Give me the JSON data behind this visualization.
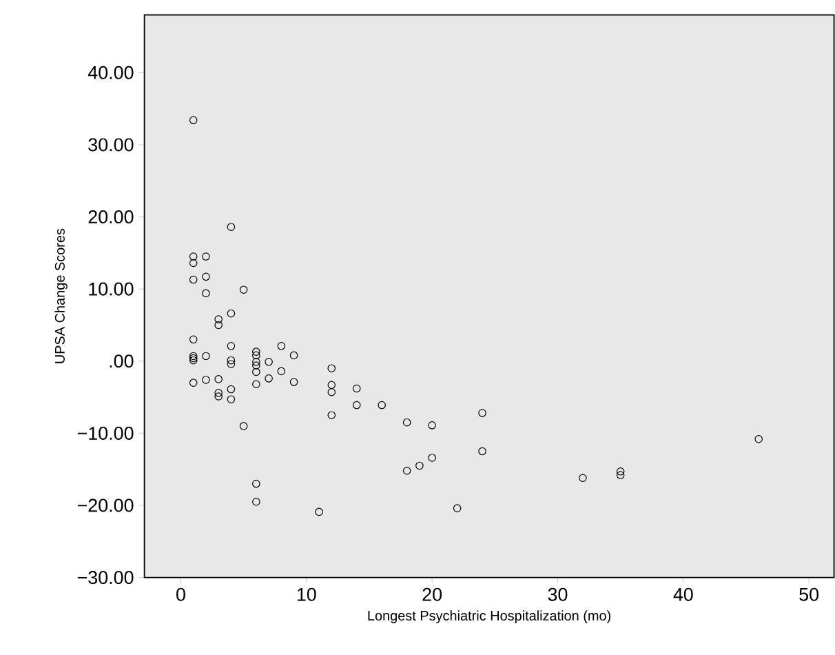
{
  "chart_data": {
    "type": "scatter",
    "xlabel": "Longest Psychiatric Hospitalization (mo)",
    "ylabel": "UPSA Change Scores",
    "xlim": [
      -2.9,
      52
    ],
    "ylim": [
      -30,
      48
    ],
    "xticks": [
      0,
      10,
      20,
      30,
      40,
      50
    ],
    "yticks": [
      {
        "value": -30,
        "label": "−30.00"
      },
      {
        "value": -20,
        "label": "−20.00"
      },
      {
        "value": -10,
        "label": "−10.00"
      },
      {
        "value": 0,
        "label": ".00"
      },
      {
        "value": 10,
        "label": "10.00"
      },
      {
        "value": 20,
        "label": "20.00"
      },
      {
        "value": 30,
        "label": "30.00"
      },
      {
        "value": 40,
        "label": "40.00"
      }
    ],
    "marker": "circle",
    "series": [
      {
        "color": "#000000",
        "x": [
          1,
          1,
          1,
          1,
          1,
          1,
          1,
          1,
          1,
          2,
          2,
          2,
          2,
          2,
          3,
          3,
          3,
          3,
          3,
          4,
          4,
          4,
          4,
          4,
          4,
          4,
          5,
          5,
          6,
          6,
          6,
          6,
          6,
          6,
          6,
          6,
          7,
          7,
          8,
          8,
          9,
          9,
          11,
          12,
          12,
          12,
          12,
          14,
          14,
          16,
          18,
          18,
          19,
          20,
          20,
          22,
          24,
          24,
          32,
          35,
          35,
          46
        ],
        "values": [
          33.4,
          14.5,
          13.6,
          11.3,
          3.0,
          0.7,
          0.4,
          0.1,
          -3.0,
          14.5,
          11.7,
          9.4,
          0.7,
          -2.6,
          5.8,
          5.0,
          -2.5,
          -4.4,
          -4.9,
          18.6,
          6.6,
          2.1,
          0.1,
          -0.4,
          -3.9,
          -5.3,
          9.9,
          -9.0,
          1.3,
          0.8,
          -0.1,
          -0.6,
          -1.5,
          -3.2,
          -17.0,
          -19.5,
          -0.1,
          -2.4,
          2.1,
          -1.4,
          0.8,
          -2.9,
          -20.9,
          -1.0,
          -3.3,
          -4.3,
          -7.5,
          -3.8,
          -6.1,
          -6.1,
          -8.5,
          -15.2,
          -14.5,
          -8.9,
          -13.4,
          -20.4,
          -7.2,
          -12.5,
          -16.2,
          -15.3,
          -15.8,
          -10.8
        ]
      }
    ]
  }
}
